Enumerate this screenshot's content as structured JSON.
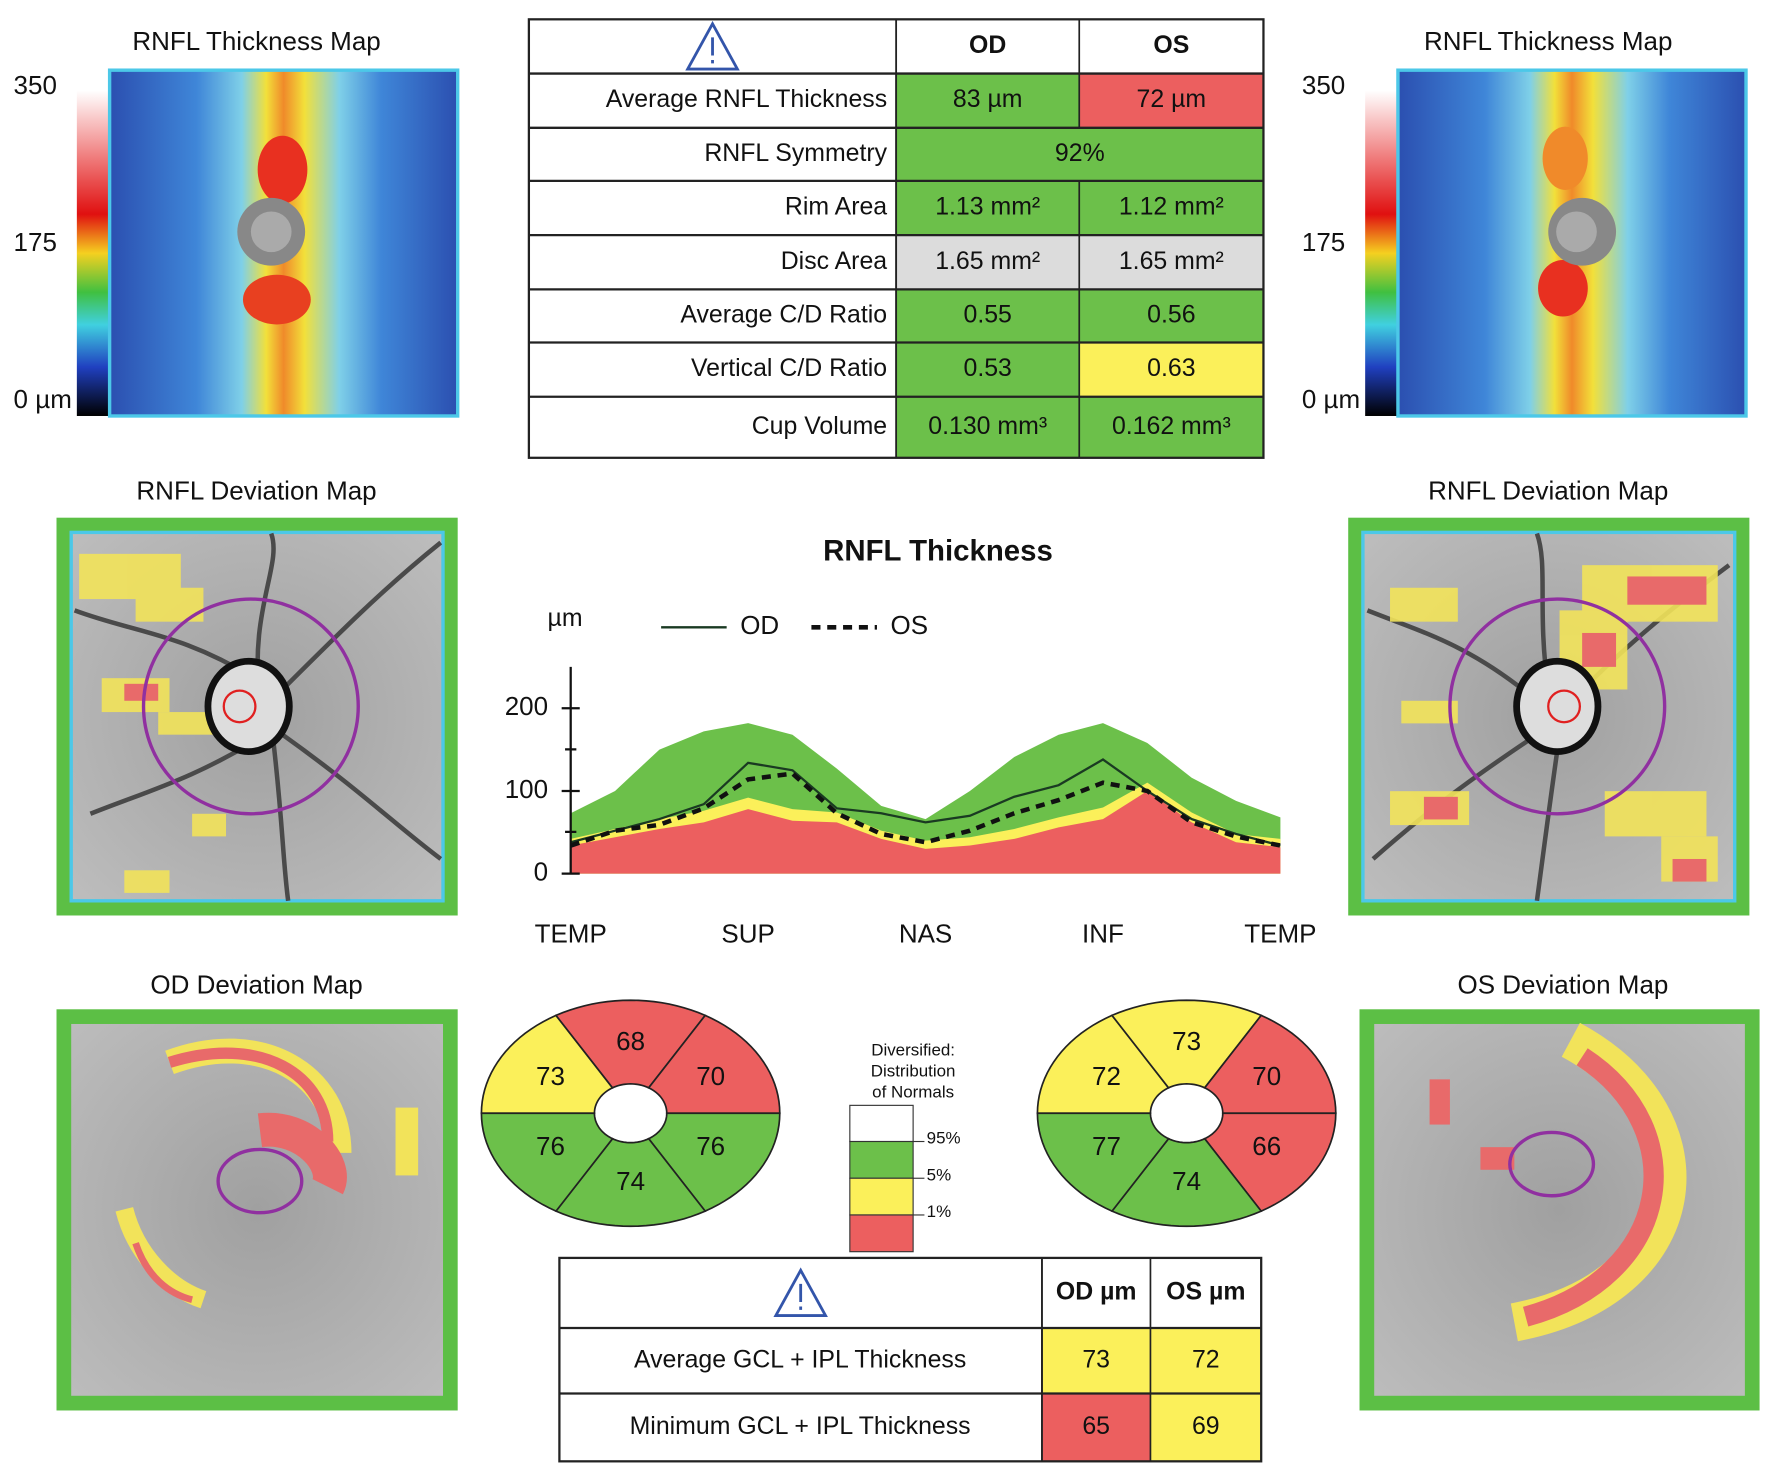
{
  "thickness_maps": [
    {
      "title": "RNFL Thickness Map",
      "scale_ticks": [
        350,
        175,
        {
          "value": 0,
          "label": "0 µm"
        }
      ]
    },
    {
      "title": "RNFL Thickness Map",
      "scale_ticks": [
        350,
        175,
        {
          "value": 0,
          "label": "0 µm"
        }
      ]
    }
  ],
  "deviation_maps": [
    {
      "title": "RNFL Deviation Map"
    },
    {
      "title": "RNFL Deviation Map"
    }
  ],
  "macular_maps": [
    {
      "title": "OD Deviation Map"
    },
    {
      "title": "OS Deviation Map"
    }
  ],
  "rnfl_table": {
    "header": [
      "OD",
      "OS"
    ],
    "rows": [
      {
        "label": "Average RNFL Thickness",
        "od": "83 µm",
        "os": "72 µm",
        "od_color": "#6cc04a",
        "os_color": "#ec5f5f"
      },
      {
        "label": "RNFL Symmetry",
        "value": "92%",
        "color": "#6cc04a"
      },
      {
        "label": "Rim Area",
        "od": "1.13 mm²",
        "os": "1.12 mm²",
        "od_color": "#6cc04a",
        "os_color": "#6cc04a"
      },
      {
        "label": "Disc Area",
        "od": "1.65 mm²",
        "os": "1.65 mm²",
        "od_color": "#dcdcdc",
        "os_color": "#dcdcdc"
      },
      {
        "label": "Average C/D Ratio",
        "od": "0.55",
        "os": "0.56",
        "od_color": "#6cc04a",
        "os_color": "#6cc04a"
      },
      {
        "label": "Vertical C/D Ratio",
        "od": "0.53",
        "os": "0.63",
        "od_color": "#6cc04a",
        "os_color": "#fbf05a"
      },
      {
        "label": "Cup Volume",
        "od": "0.130 mm³",
        "os": "0.162 mm³",
        "od_color": "#6cc04a",
        "os_color": "#6cc04a"
      }
    ]
  },
  "chart_data": {
    "type": "line",
    "title": "RNFL Thickness",
    "y_label": "µm",
    "categories": [
      "TEMP",
      null,
      null,
      null,
      "SUP",
      null,
      null,
      null,
      "NAS",
      null,
      null,
      null,
      "INF",
      null,
      null,
      null,
      "TEMP"
    ],
    "ylim": [
      0,
      250
    ],
    "yticks": [
      0,
      100,
      200
    ],
    "series": [
      {
        "name": "OD",
        "color": "#1a3a22",
        "dash": false,
        "values": [
          38,
          52,
          66,
          84,
          134,
          125,
          79,
          73,
          62,
          70,
          93,
          107,
          138,
          100,
          66,
          48,
          34
        ]
      },
      {
        "name": "OS",
        "color": "#111111",
        "dash": true,
        "values": [
          34,
          52,
          59,
          79,
          114,
          121,
          73,
          48,
          38,
          52,
          73,
          89,
          110,
          100,
          62,
          45,
          34
        ]
      }
    ],
    "bands": [
      {
        "name": "95%",
        "color": "#6cc04a",
        "values": [
          73,
          100,
          150,
          172,
          182,
          168,
          127,
          82,
          66,
          100,
          141,
          168,
          182,
          158,
          116,
          88,
          68
        ]
      },
      {
        "name": "5%",
        "color": "#fbf05a",
        "values": [
          42,
          54,
          66,
          76,
          92,
          78,
          74,
          52,
          40,
          44,
          54,
          68,
          80,
          110,
          74,
          48,
          42
        ]
      },
      {
        "name": "1%",
        "color": "#ec5f5f",
        "values": [
          34,
          44,
          54,
          62,
          78,
          64,
          62,
          42,
          30,
          34,
          42,
          56,
          66,
          100,
          62,
          38,
          32
        ]
      }
    ],
    "legend_title": [
      "Diversified:",
      "Distribution",
      "of Normals"
    ]
  },
  "sectors": [
    {
      "values": [
        {
          "label": 73,
          "color": "#fbf05a"
        },
        {
          "label": 68,
          "color": "#ec5f5f"
        },
        {
          "label": 70,
          "color": "#ec5f5f"
        },
        {
          "label": 76,
          "color": "#6cc04a"
        },
        {
          "label": 74,
          "color": "#6cc04a"
        },
        {
          "label": 76,
          "color": "#6cc04a"
        }
      ]
    },
    {
      "values": [
        {
          "label": 72,
          "color": "#fbf05a"
        },
        {
          "label": 73,
          "color": "#fbf05a"
        },
        {
          "label": 70,
          "color": "#ec5f5f"
        },
        {
          "label": 66,
          "color": "#ec5f5f"
        },
        {
          "label": 74,
          "color": "#6cc04a"
        },
        {
          "label": 77,
          "color": "#6cc04a"
        }
      ]
    }
  ],
  "gcl_table": {
    "header": [
      "OD µm",
      "OS µm"
    ],
    "rows": [
      {
        "label": "Average GCL + IPL Thickness",
        "od": 73,
        "os": 72,
        "od_color": "#fbf05a",
        "os_color": "#fbf05a"
      },
      {
        "label": "Minimum GCL + IPL Thickness",
        "od": 65,
        "os": 69,
        "od_color": "#ec5f5f",
        "os_color": "#fbf05a"
      }
    ]
  }
}
